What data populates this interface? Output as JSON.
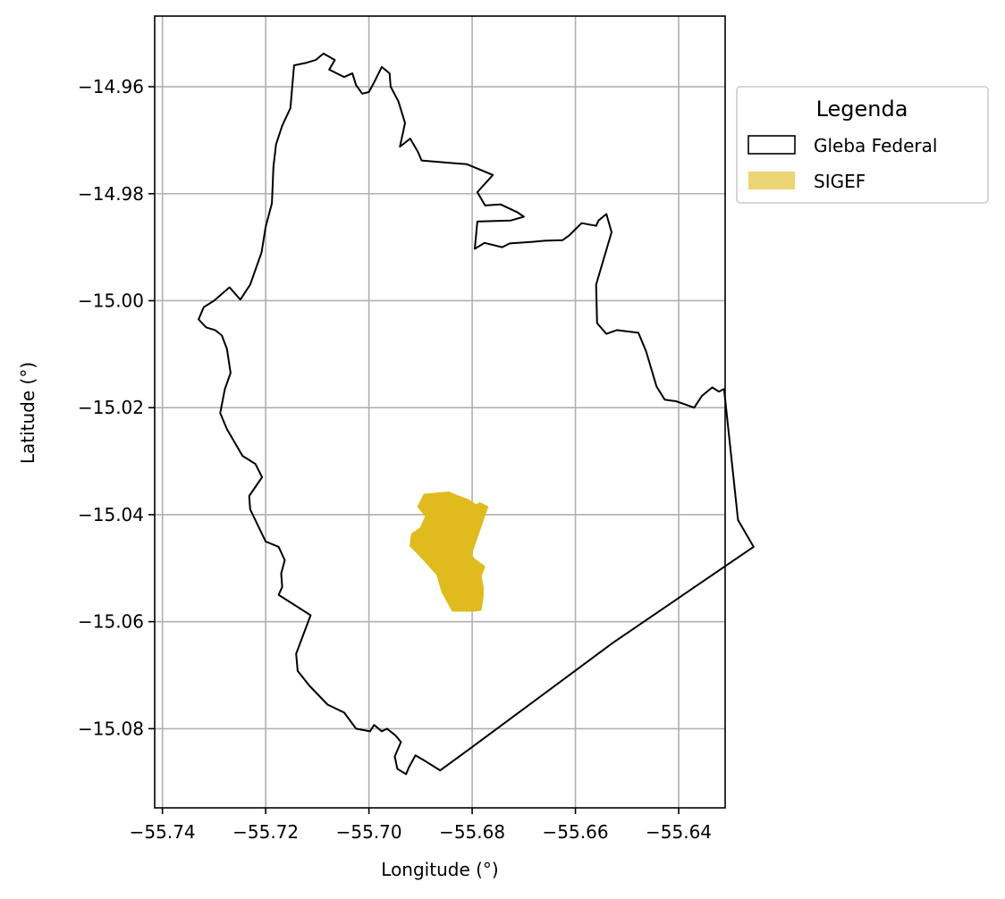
{
  "chart_data": {
    "type": "map",
    "xlabel": "Longitude (°)",
    "ylabel": "Latitude (°)",
    "xlim": [
      -55.7415,
      -55.631
    ],
    "ylim": [
      -15.0948,
      -14.9468
    ],
    "grid": true,
    "x_ticks": [
      {
        "value": -55.74,
        "label": "−55.74"
      },
      {
        "value": -55.72,
        "label": "−55.72"
      },
      {
        "value": -55.7,
        "label": "−55.70"
      },
      {
        "value": -55.68,
        "label": "−55.68"
      },
      {
        "value": -55.66,
        "label": "−55.66"
      },
      {
        "value": -55.64,
        "label": "−55.64"
      }
    ],
    "y_ticks": [
      {
        "value": -14.96,
        "label": "−14.96"
      },
      {
        "value": -14.98,
        "label": "−14.98"
      },
      {
        "value": -15.0,
        "label": "−15.00"
      },
      {
        "value": -15.02,
        "label": "−15.02"
      },
      {
        "value": -15.04,
        "label": "−15.04"
      },
      {
        "value": -15.06,
        "label": "−15.06"
      },
      {
        "value": -15.08,
        "label": "−15.08"
      }
    ],
    "legend": {
      "title": "Legenda",
      "placement": "outside-right-top",
      "entries": [
        {
          "label": "Gleba Federal",
          "style": "outline",
          "color": "#000000"
        },
        {
          "label": "SIGEF",
          "style": "fill",
          "color": "#ebd574"
        }
      ]
    },
    "layers": [
      {
        "name": "Gleba Federal",
        "stroke": "#000000",
        "fill": "none",
        "coordinates": [
          [
            -55.7088,
            -14.9538
          ],
          [
            -55.7066,
            -14.955
          ],
          [
            -55.7077,
            -14.9568
          ],
          [
            -55.7048,
            -14.9582
          ],
          [
            -55.7032,
            -14.9575
          ],
          [
            -55.7025,
            -14.9597
          ],
          [
            -55.7013,
            -14.9613
          ],
          [
            -55.7,
            -14.961
          ],
          [
            -55.699,
            -14.9592
          ],
          [
            -55.6975,
            -14.9563
          ],
          [
            -55.696,
            -14.9575
          ],
          [
            -55.6958,
            -14.96
          ],
          [
            -55.6943,
            -14.9627
          ],
          [
            -55.693,
            -14.9668
          ],
          [
            -55.694,
            -14.9712
          ],
          [
            -55.692,
            -14.9697
          ],
          [
            -55.6905,
            -14.9722
          ],
          [
            -55.6898,
            -14.9738
          ],
          [
            -55.681,
            -14.9745
          ],
          [
            -55.676,
            -14.9765
          ],
          [
            -55.679,
            -14.9797
          ],
          [
            -55.6775,
            -14.9822
          ],
          [
            -55.6745,
            -14.982
          ],
          [
            -55.6712,
            -14.9835
          ],
          [
            -55.67,
            -14.9843
          ],
          [
            -55.6725,
            -14.985
          ],
          [
            -55.679,
            -14.9852
          ],
          [
            -55.6795,
            -14.9903
          ],
          [
            -55.6776,
            -14.9892
          ],
          [
            -55.6742,
            -14.99
          ],
          [
            -55.6727,
            -14.9893
          ],
          [
            -55.6683,
            -14.989
          ],
          [
            -55.666,
            -14.9888
          ],
          [
            -55.6625,
            -14.9887
          ],
          [
            -55.6612,
            -14.9878
          ],
          [
            -55.6588,
            -14.9855
          ],
          [
            -55.656,
            -14.986
          ],
          [
            -55.6555,
            -14.985
          ],
          [
            -55.654,
            -14.9838
          ],
          [
            -55.653,
            -14.9872
          ],
          [
            -55.656,
            -14.997
          ],
          [
            -55.6558,
            -15.0042
          ],
          [
            -55.654,
            -15.0062
          ],
          [
            -55.652,
            -15.0055
          ],
          [
            -55.6478,
            -15.006
          ],
          [
            -55.6463,
            -15.0095
          ],
          [
            -55.6443,
            -15.016
          ],
          [
            -55.6427,
            -15.0185
          ],
          [
            -55.6405,
            -15.0188
          ],
          [
            -55.637,
            -15.02
          ],
          [
            -55.6355,
            -15.0178
          ],
          [
            -55.6335,
            -15.0162
          ],
          [
            -55.6322,
            -15.017
          ],
          [
            -55.6312,
            -15.0165
          ],
          [
            -55.6285,
            -15.041
          ],
          [
            -55.6255,
            -15.046
          ],
          [
            -55.6528,
            -15.064
          ],
          [
            -55.6805,
            -15.0838
          ],
          [
            -55.6862,
            -15.0878
          ],
          [
            -55.6892,
            -15.086
          ],
          [
            -55.691,
            -15.085
          ],
          [
            -55.6923,
            -15.0873
          ],
          [
            -55.6928,
            -15.0885
          ],
          [
            -55.6945,
            -15.0875
          ],
          [
            -55.695,
            -15.0852
          ],
          [
            -55.6938,
            -15.0825
          ],
          [
            -55.6948,
            -15.0813
          ],
          [
            -55.6965,
            -15.08
          ],
          [
            -55.6975,
            -15.0805
          ],
          [
            -55.699,
            -15.0793
          ],
          [
            -55.6998,
            -15.0805
          ],
          [
            -55.7025,
            -15.08
          ],
          [
            -55.7048,
            -15.077
          ],
          [
            -55.708,
            -15.0755
          ],
          [
            -55.7115,
            -15.072
          ],
          [
            -55.7138,
            -15.0692
          ],
          [
            -55.7141,
            -15.066
          ],
          [
            -55.7113,
            -15.0588
          ],
          [
            -55.7147,
            -15.0567
          ],
          [
            -55.7175,
            -15.055
          ],
          [
            -55.7168,
            -15.0535
          ],
          [
            -55.717,
            -15.051
          ],
          [
            -55.7163,
            -15.0485
          ],
          [
            -55.7175,
            -15.046
          ],
          [
            -55.72,
            -15.045
          ],
          [
            -55.723,
            -15.039
          ],
          [
            -55.7232,
            -15.0365
          ],
          [
            -55.7207,
            -15.033
          ],
          [
            -55.722,
            -15.0305
          ],
          [
            -55.7245,
            -15.029
          ],
          [
            -55.7275,
            -15.024
          ],
          [
            -55.7288,
            -15.021
          ],
          [
            -55.7279,
            -15.0165
          ],
          [
            -55.7268,
            -15.0135
          ],
          [
            -55.7275,
            -15.009
          ],
          [
            -55.7285,
            -15.0065
          ],
          [
            -55.7298,
            -15.0055
          ],
          [
            -55.7315,
            -15.005
          ],
          [
            -55.733,
            -15.0035
          ],
          [
            -55.732,
            -15.0012
          ],
          [
            -55.73,
            -15.0
          ],
          [
            -55.727,
            -14.9975
          ],
          [
            -55.7249,
            -14.9998
          ],
          [
            -55.723,
            -14.997
          ],
          [
            -55.7208,
            -14.991
          ],
          [
            -55.72,
            -14.9862
          ],
          [
            -55.7188,
            -14.9818
          ],
          [
            -55.7185,
            -14.975
          ],
          [
            -55.718,
            -14.9708
          ],
          [
            -55.7168,
            -14.9673
          ],
          [
            -55.7152,
            -14.964
          ],
          [
            -55.7145,
            -14.956
          ],
          [
            -55.712,
            -14.9555
          ],
          [
            -55.7103,
            -14.955
          ],
          [
            -55.7088,
            -14.9538
          ]
        ]
      },
      {
        "name": "SIGEF",
        "stroke": "none",
        "fill": "#e0bb1e",
        "coordinates": [
          [
            -55.6893,
            -15.0362
          ],
          [
            -55.687,
            -15.036
          ],
          [
            -55.6845,
            -15.0358
          ],
          [
            -55.6828,
            -15.0365
          ],
          [
            -55.6808,
            -15.0372
          ],
          [
            -55.6792,
            -15.0382
          ],
          [
            -55.6785,
            -15.0378
          ],
          [
            -55.677,
            -15.0385
          ],
          [
            -55.6802,
            -15.0475
          ],
          [
            -55.6796,
            -15.0483
          ],
          [
            -55.6776,
            -15.0497
          ],
          [
            -55.6783,
            -15.0515
          ],
          [
            -55.6779,
            -15.0535
          ],
          [
            -55.6779,
            -15.0553
          ],
          [
            -55.6783,
            -15.0578
          ],
          [
            -55.6796,
            -15.058
          ],
          [
            -55.6838,
            -15.058
          ],
          [
            -55.6858,
            -15.0545
          ],
          [
            -55.6868,
            -15.0512
          ],
          [
            -55.6895,
            -15.0483
          ],
          [
            -55.692,
            -15.0458
          ],
          [
            -55.6917,
            -15.0436
          ],
          [
            -55.69,
            -15.0425
          ],
          [
            -55.689,
            -15.0403
          ],
          [
            -55.6905,
            -15.0385
          ],
          [
            -55.6893,
            -15.0362
          ]
        ]
      }
    ]
  }
}
